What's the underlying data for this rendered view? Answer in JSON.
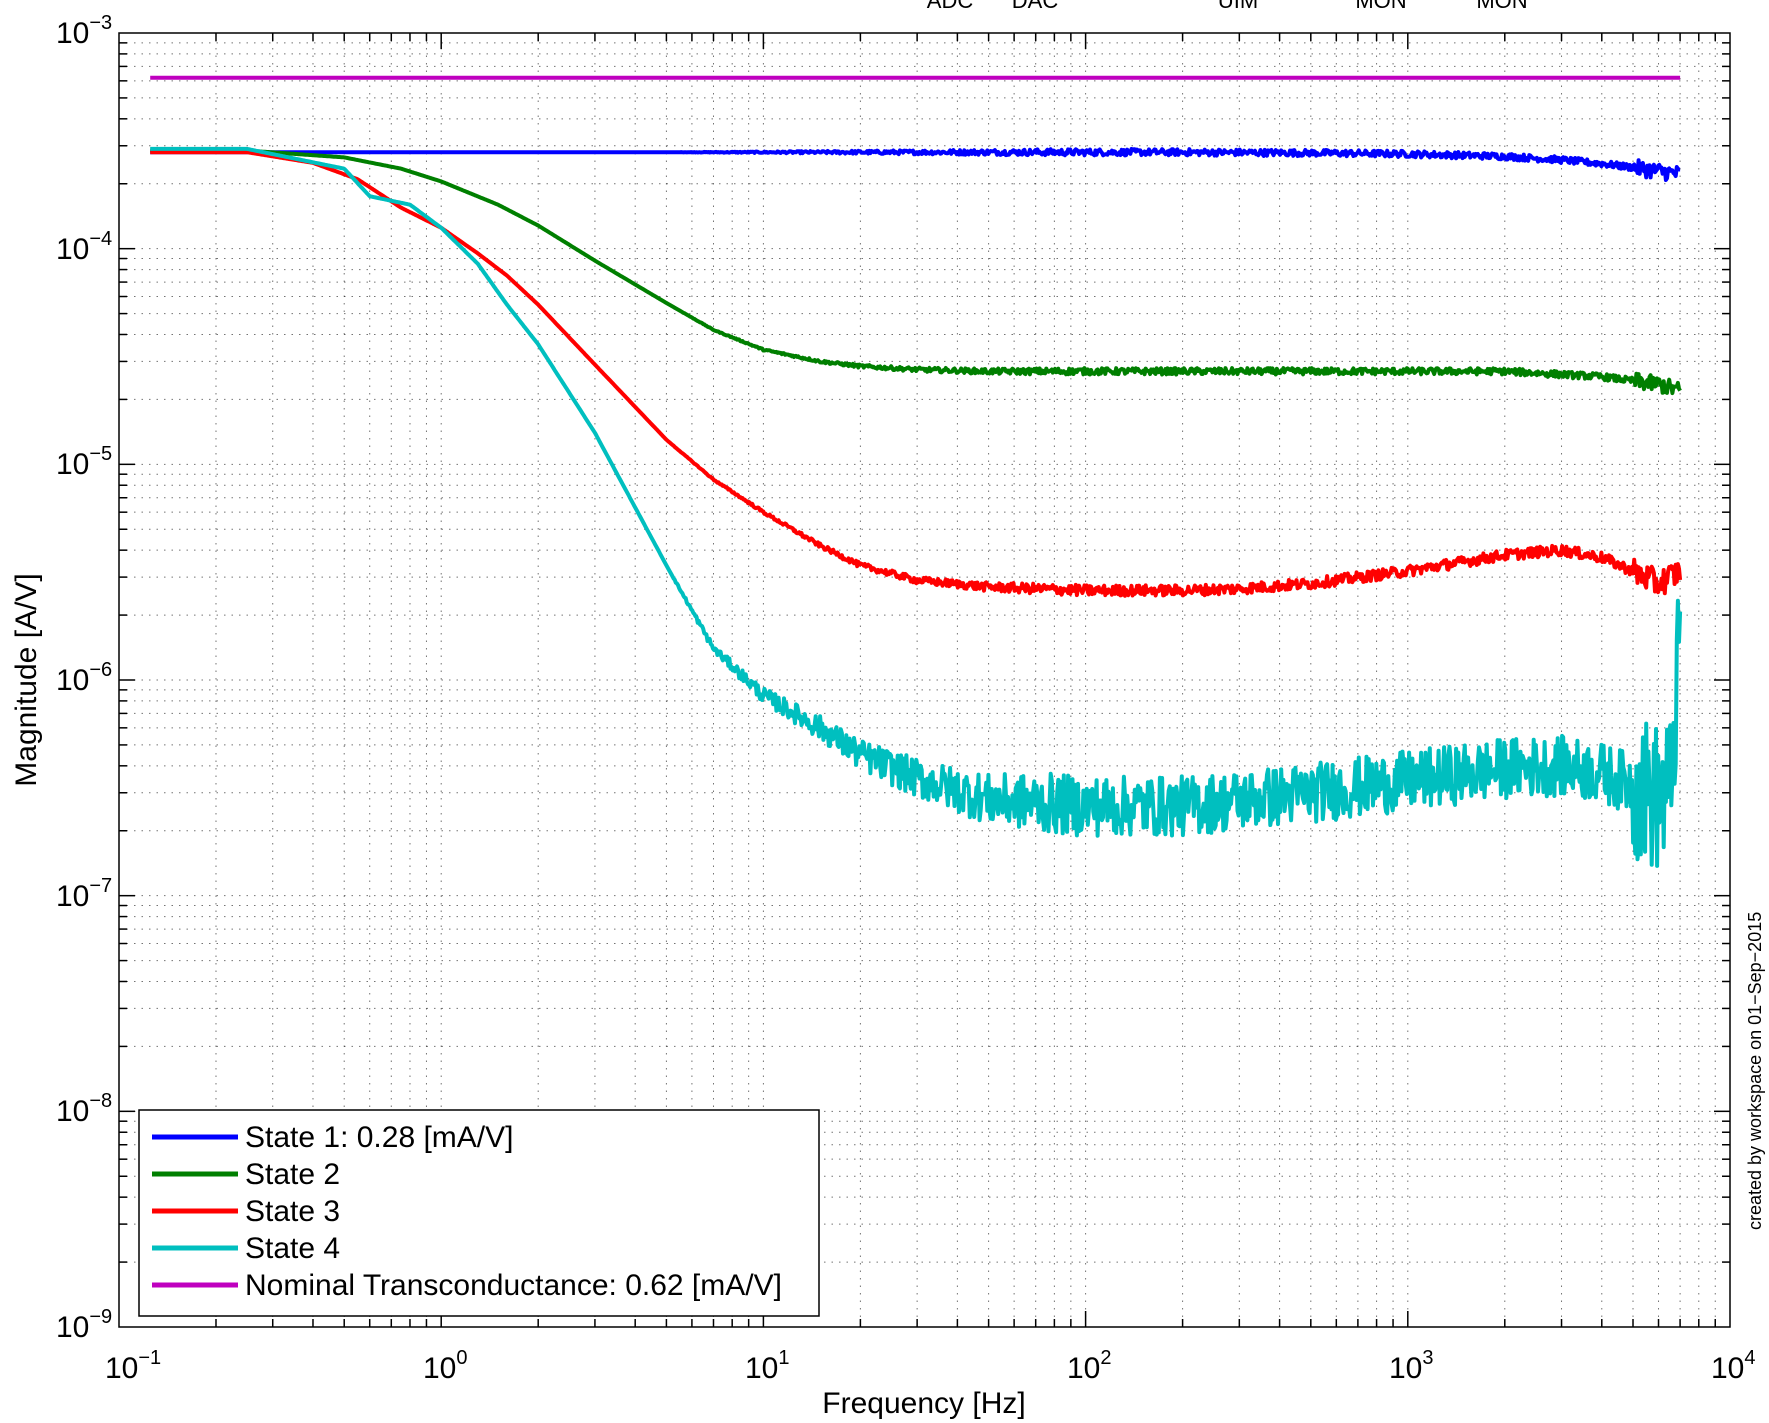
{
  "chart_data": {
    "type": "line",
    "xlabel": "Frequency [Hz]",
    "ylabel": "Magnitude [A/V]",
    "xscale": "log",
    "yscale": "log",
    "xlim": [
      0.1,
      10000
    ],
    "ylim": [
      1e-09,
      0.001
    ],
    "grid": true,
    "legend_position": "bottom-left",
    "x_ticks": [
      {
        "base": "10",
        "exp": "−1",
        "value": 0.1
      },
      {
        "base": "10",
        "exp": "0",
        "value": 1
      },
      {
        "base": "10",
        "exp": "1",
        "value": 10
      },
      {
        "base": "10",
        "exp": "2",
        "value": 100
      },
      {
        "base": "10",
        "exp": "3",
        "value": 1000
      },
      {
        "base": "10",
        "exp": "4",
        "value": 10000
      }
    ],
    "y_ticks": [
      {
        "base": "10",
        "exp": "−9",
        "value": 1e-09
      },
      {
        "base": "10",
        "exp": "−8",
        "value": 1e-08
      },
      {
        "base": "10",
        "exp": "−7",
        "value": 1e-07
      },
      {
        "base": "10",
        "exp": "−6",
        "value": 1e-06
      },
      {
        "base": "10",
        "exp": "−5",
        "value": 1e-05
      },
      {
        "base": "10",
        "exp": "−4",
        "value": 0.0001
      },
      {
        "base": "10",
        "exp": "−3",
        "value": 0.001
      }
    ],
    "top_labels": [
      "ADC",
      "DAC",
      "UIM",
      "MON",
      "MON"
    ],
    "credit": "created by workspace on 01−Sep−2015",
    "series": [
      {
        "name": "State 1: 0.28 [mA/V]",
        "color": "#0000ff",
        "x": [
          0.125,
          0.25,
          0.5,
          1,
          2,
          5,
          10,
          20,
          50,
          100,
          200,
          500,
          1000,
          2000,
          3000,
          4000,
          5000,
          6000,
          6500,
          7000
        ],
        "y": [
          0.00028,
          0.00028,
          0.00028,
          0.00028,
          0.00028,
          0.00028,
          0.00028,
          0.00028,
          0.00028,
          0.00028,
          0.00028,
          0.000278,
          0.000275,
          0.000268,
          0.000258,
          0.000248,
          0.000238,
          0.000229,
          0.000225,
          0.000222
        ],
        "noise": 0.03
      },
      {
        "name": "State 2",
        "color": "#007f00",
        "x": [
          0.125,
          0.25,
          0.5,
          0.75,
          1,
          1.5,
          2,
          3,
          5,
          7,
          10,
          15,
          20,
          30,
          50,
          100,
          200,
          500,
          1000,
          2000,
          4000,
          6000,
          7000
        ],
        "y": [
          0.000285,
          0.000285,
          0.000265,
          0.000235,
          0.000205,
          0.00016,
          0.000128,
          8.8e-05,
          5.6e-05,
          4.2e-05,
          3.4e-05,
          3e-05,
          2.85e-05,
          2.75e-05,
          2.7e-05,
          2.7e-05,
          2.7e-05,
          2.7e-05,
          2.7e-05,
          2.7e-05,
          2.55e-05,
          2.35e-05,
          2.2e-05
        ],
        "noise": 0.03
      },
      {
        "name": "State 3",
        "color": "#ff0000",
        "x": [
          0.125,
          0.25,
          0.4,
          0.55,
          0.75,
          1,
          1.3,
          1.6,
          2,
          3,
          5,
          7,
          10,
          15,
          20,
          30,
          50,
          100,
          200,
          300,
          500,
          1000,
          2000,
          3000,
          4000,
          5000,
          6000,
          7000
        ],
        "y": [
          0.00028,
          0.00028,
          0.00025,
          0.00021,
          0.000155,
          0.000125,
          9.5e-05,
          7.5e-05,
          5.5e-05,
          2.9e-05,
          1.3e-05,
          8.5e-06,
          6e-06,
          4.2e-06,
          3.4e-06,
          2.9e-06,
          2.7e-06,
          2.6e-06,
          2.6e-06,
          2.65e-06,
          2.8e-06,
          3.2e-06,
          3.8e-06,
          4e-06,
          3.7e-06,
          3.2e-06,
          2.8e-06,
          3.2e-06
        ],
        "noise": 0.05
      },
      {
        "name": "State 4",
        "color": "#00bfbf",
        "x": [
          0.125,
          0.25,
          0.5,
          0.6,
          0.8,
          1,
          1.3,
          1.6,
          2,
          3,
          5,
          7,
          10,
          15,
          20,
          30,
          50,
          100,
          200,
          500,
          1000,
          2000,
          3000,
          4000,
          5000,
          6000,
          6500,
          7000
        ],
        "y": [
          0.00029,
          0.00029,
          0.000235,
          0.000175,
          0.00016,
          0.000125,
          8.5e-05,
          5.5e-05,
          3.6e-05,
          1.4e-05,
          3.4e-06,
          1.4e-06,
          8.5e-07,
          6e-07,
          4.5e-07,
          3.5e-07,
          2.8e-07,
          2.6e-07,
          2.6e-07,
          3e-07,
          3.4e-07,
          3.9e-07,
          4e-07,
          3.7e-07,
          3.3e-07,
          2.8e-07,
          3e-07,
          1.5e-06
        ],
        "noise": 0.28
      },
      {
        "name": "Nominal Transconductance: 0.62 [mA/V]",
        "color": "#bf00bf",
        "x": [
          0.125,
          7000
        ],
        "y": [
          0.00062,
          0.00062
        ],
        "noise": 0
      }
    ]
  }
}
